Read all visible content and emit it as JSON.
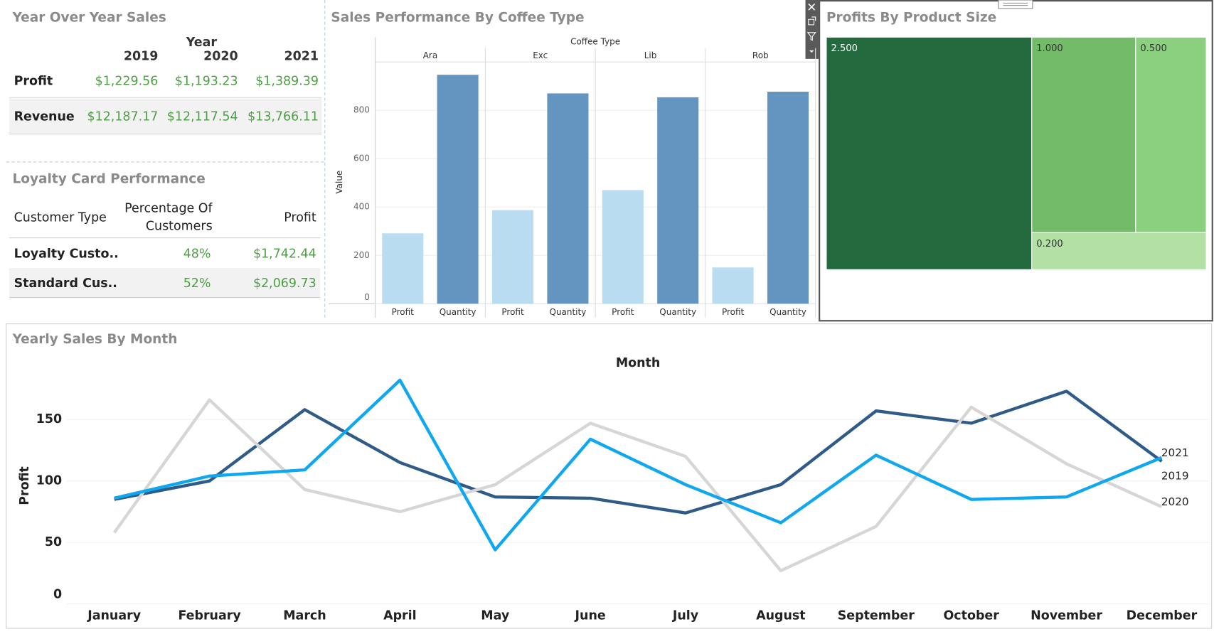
{
  "yoy_table": {
    "title": "Year Over Year Sales",
    "column_group": "Year",
    "columns": [
      "2019",
      "2020",
      "2021"
    ],
    "rows": [
      {
        "label": "Profit",
        "cells": [
          "$1,229.56",
          "$1,193.23",
          "$1,389.39"
        ]
      },
      {
        "label": "Revenue",
        "cells": [
          "$12,187.17",
          "$12,117.54",
          "$13,766.11"
        ]
      }
    ]
  },
  "loyalty_table": {
    "title": "Loyalty Card Performance",
    "columns": [
      "Customer Type",
      "Percentage Of Customers",
      "Profit"
    ],
    "rows": [
      [
        "Loyalty Custo..",
        "48%",
        "$1,742.44"
      ],
      [
        "Standard Cus..",
        "52%",
        "$2,069.73"
      ]
    ]
  },
  "chart_data": [
    {
      "type": "bar",
      "title": "Sales Performance By Coffee Type",
      "facet_label": "Coffee Type",
      "categories": [
        "Ara",
        "Exc",
        "Lib",
        "Rob"
      ],
      "y_label": "Value",
      "series": [
        {
          "name": "Profit",
          "color": "#b9dcf0",
          "values": [
            291,
            387,
            470,
            150
          ]
        },
        {
          "name": "Quantity",
          "color": "#6494c0",
          "values": [
            947,
            870,
            854,
            877
          ]
        }
      ],
      "ylim": [
        0,
        1000
      ],
      "yticks": [
        0,
        200,
        400,
        600,
        800
      ],
      "grid": true
    },
    {
      "type": "treemap",
      "title": "Profits By Product Size",
      "categories": [
        "2.500",
        "1.000",
        "0.500",
        "0.200"
      ],
      "values": [
        2062,
        876,
        595,
        280
      ],
      "colors": [
        "#236b3e",
        "#74bb69",
        "#8bd07e",
        "#b2e0a5"
      ]
    },
    {
      "type": "line",
      "title": "Yearly Sales By Month",
      "x_label": "Month",
      "y_label": "Profit",
      "categories": [
        "January",
        "February",
        "March",
        "April",
        "May",
        "June",
        "July",
        "August",
        "September",
        "October",
        "November",
        "December"
      ],
      "series": [
        {
          "name": "2019",
          "color": "#2e5b88",
          "values": [
            85,
            100,
            158,
            115,
            87,
            86,
            74,
            97,
            157,
            147,
            173,
            116
          ]
        },
        {
          "name": "2020",
          "color": "#d6d6d6",
          "values": [
            58,
            166,
            93,
            75,
            97,
            147,
            120,
            27,
            63,
            160,
            114,
            79
          ]
        },
        {
          "name": "2021",
          "color": "#0fa8f0",
          "values": [
            86,
            104,
            109,
            182,
            44,
            134,
            97,
            66,
            121,
            85,
            87,
            119
          ]
        }
      ],
      "ylim": [
        0,
        190
      ],
      "yticks": [
        0,
        50,
        100,
        150
      ],
      "grid": true
    }
  ]
}
